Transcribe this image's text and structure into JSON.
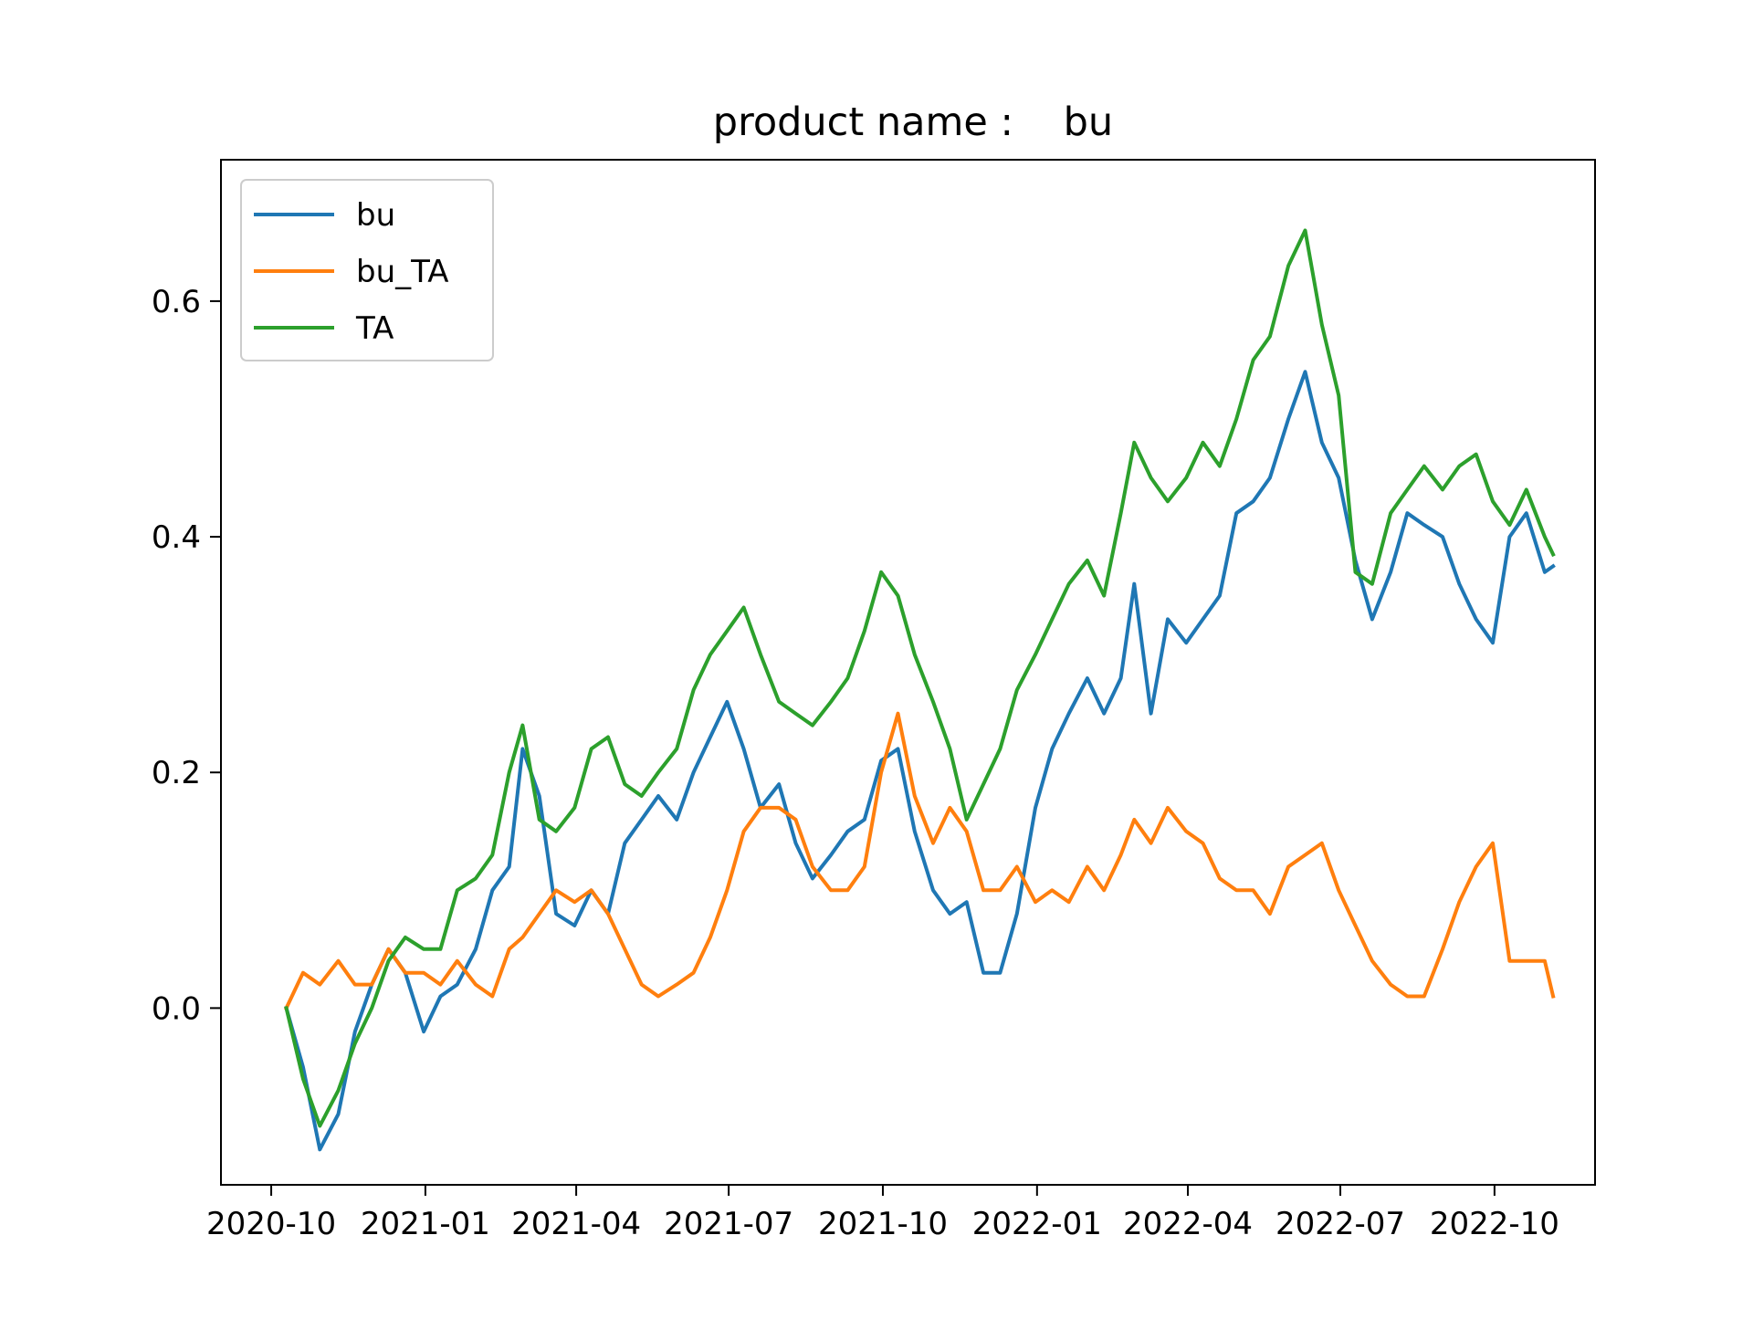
{
  "chart_data": {
    "type": "line",
    "title": "product name :    bu",
    "xlabel": "",
    "ylabel": "",
    "x_ticks": [
      "2020-10",
      "2021-01",
      "2021-04",
      "2021-07",
      "2021-10",
      "2022-01",
      "2022-04",
      "2022-07",
      "2022-10"
    ],
    "y_ticks": [
      "0.0",
      "0.2",
      "0.4",
      "0.6"
    ],
    "ylim": [
      -0.15,
      0.72
    ],
    "xlim": [
      "2020-09-01",
      "2022-11-30"
    ],
    "grid": false,
    "legend_position": "top-left",
    "x": [
      "2020-10-10",
      "2020-10-20",
      "2020-10-30",
      "2020-11-10",
      "2020-11-20",
      "2020-11-30",
      "2020-12-10",
      "2020-12-20",
      "2020-12-31",
      "2021-01-10",
      "2021-01-20",
      "2021-01-31",
      "2021-02-10",
      "2021-02-20",
      "2021-02-28",
      "2021-03-10",
      "2021-03-20",
      "2021-03-31",
      "2021-04-10",
      "2021-04-20",
      "2021-04-30",
      "2021-05-10",
      "2021-05-20",
      "2021-05-31",
      "2021-06-10",
      "2021-06-20",
      "2021-06-30",
      "2021-07-10",
      "2021-07-20",
      "2021-07-31",
      "2021-08-10",
      "2021-08-20",
      "2021-08-31",
      "2021-09-10",
      "2021-09-20",
      "2021-09-30",
      "2021-10-10",
      "2021-10-20",
      "2021-10-31",
      "2021-11-10",
      "2021-11-20",
      "2021-11-30",
      "2021-12-10",
      "2021-12-20",
      "2021-12-31",
      "2022-01-10",
      "2022-01-20",
      "2022-01-31",
      "2022-02-10",
      "2022-02-20",
      "2022-02-28",
      "2022-03-10",
      "2022-03-20",
      "2022-03-31",
      "2022-04-10",
      "2022-04-20",
      "2022-04-30",
      "2022-05-10",
      "2022-05-20",
      "2022-05-31",
      "2022-06-10",
      "2022-06-20",
      "2022-06-30",
      "2022-07-10",
      "2022-07-20",
      "2022-07-31",
      "2022-08-10",
      "2022-08-20",
      "2022-08-31",
      "2022-09-10",
      "2022-09-20",
      "2022-09-30",
      "2022-10-10",
      "2022-10-20",
      "2022-10-31",
      "2022-11-05"
    ],
    "series": [
      {
        "name": "bu",
        "color": "#1f77b4",
        "values": [
          0.0,
          -0.05,
          -0.12,
          -0.09,
          -0.02,
          0.02,
          0.05,
          0.03,
          -0.02,
          0.01,
          0.02,
          0.05,
          0.1,
          0.12,
          0.22,
          0.18,
          0.08,
          0.07,
          0.1,
          0.08,
          0.14,
          0.16,
          0.18,
          0.16,
          0.2,
          0.23,
          0.26,
          0.22,
          0.17,
          0.19,
          0.14,
          0.11,
          0.13,
          0.15,
          0.16,
          0.21,
          0.22,
          0.15,
          0.1,
          0.08,
          0.09,
          0.03,
          0.03,
          0.08,
          0.17,
          0.22,
          0.25,
          0.28,
          0.25,
          0.28,
          0.36,
          0.25,
          0.33,
          0.31,
          0.33,
          0.35,
          0.42,
          0.43,
          0.45,
          0.5,
          0.54,
          0.48,
          0.45,
          0.38,
          0.33,
          0.37,
          0.42,
          0.41,
          0.4,
          0.36,
          0.33,
          0.31,
          0.4,
          0.42,
          0.37,
          0.375
        ]
      },
      {
        "name": "bu_TA",
        "color": "#ff7f0e",
        "values": [
          0.0,
          0.03,
          0.02,
          0.04,
          0.02,
          0.02,
          0.05,
          0.03,
          0.03,
          0.02,
          0.04,
          0.02,
          0.01,
          0.05,
          0.06,
          0.08,
          0.1,
          0.09,
          0.1,
          0.08,
          0.05,
          0.02,
          0.01,
          0.02,
          0.03,
          0.06,
          0.1,
          0.15,
          0.17,
          0.17,
          0.16,
          0.12,
          0.1,
          0.1,
          0.12,
          0.2,
          0.25,
          0.18,
          0.14,
          0.17,
          0.15,
          0.1,
          0.1,
          0.12,
          0.09,
          0.1,
          0.09,
          0.12,
          0.1,
          0.13,
          0.16,
          0.14,
          0.17,
          0.15,
          0.14,
          0.11,
          0.1,
          0.1,
          0.08,
          0.12,
          0.13,
          0.14,
          0.1,
          0.07,
          0.04,
          0.02,
          0.01,
          0.01,
          0.05,
          0.09,
          0.12,
          0.14,
          0.04,
          0.04,
          0.04,
          0.01
        ]
      },
      {
        "name": "TA",
        "color": "#2ca02c",
        "values": [
          0.0,
          -0.06,
          -0.1,
          -0.07,
          -0.03,
          0.0,
          0.04,
          0.06,
          0.05,
          0.05,
          0.1,
          0.11,
          0.13,
          0.2,
          0.24,
          0.16,
          0.15,
          0.17,
          0.22,
          0.23,
          0.19,
          0.18,
          0.2,
          0.22,
          0.27,
          0.3,
          0.32,
          0.34,
          0.3,
          0.26,
          0.25,
          0.24,
          0.26,
          0.28,
          0.32,
          0.37,
          0.35,
          0.3,
          0.26,
          0.22,
          0.16,
          0.19,
          0.22,
          0.27,
          0.3,
          0.33,
          0.36,
          0.38,
          0.35,
          0.42,
          0.48,
          0.45,
          0.43,
          0.45,
          0.48,
          0.46,
          0.5,
          0.55,
          0.57,
          0.63,
          0.66,
          0.58,
          0.52,
          0.37,
          0.36,
          0.42,
          0.44,
          0.46,
          0.44,
          0.46,
          0.47,
          0.43,
          0.41,
          0.44,
          0.4,
          0.385
        ]
      }
    ]
  }
}
